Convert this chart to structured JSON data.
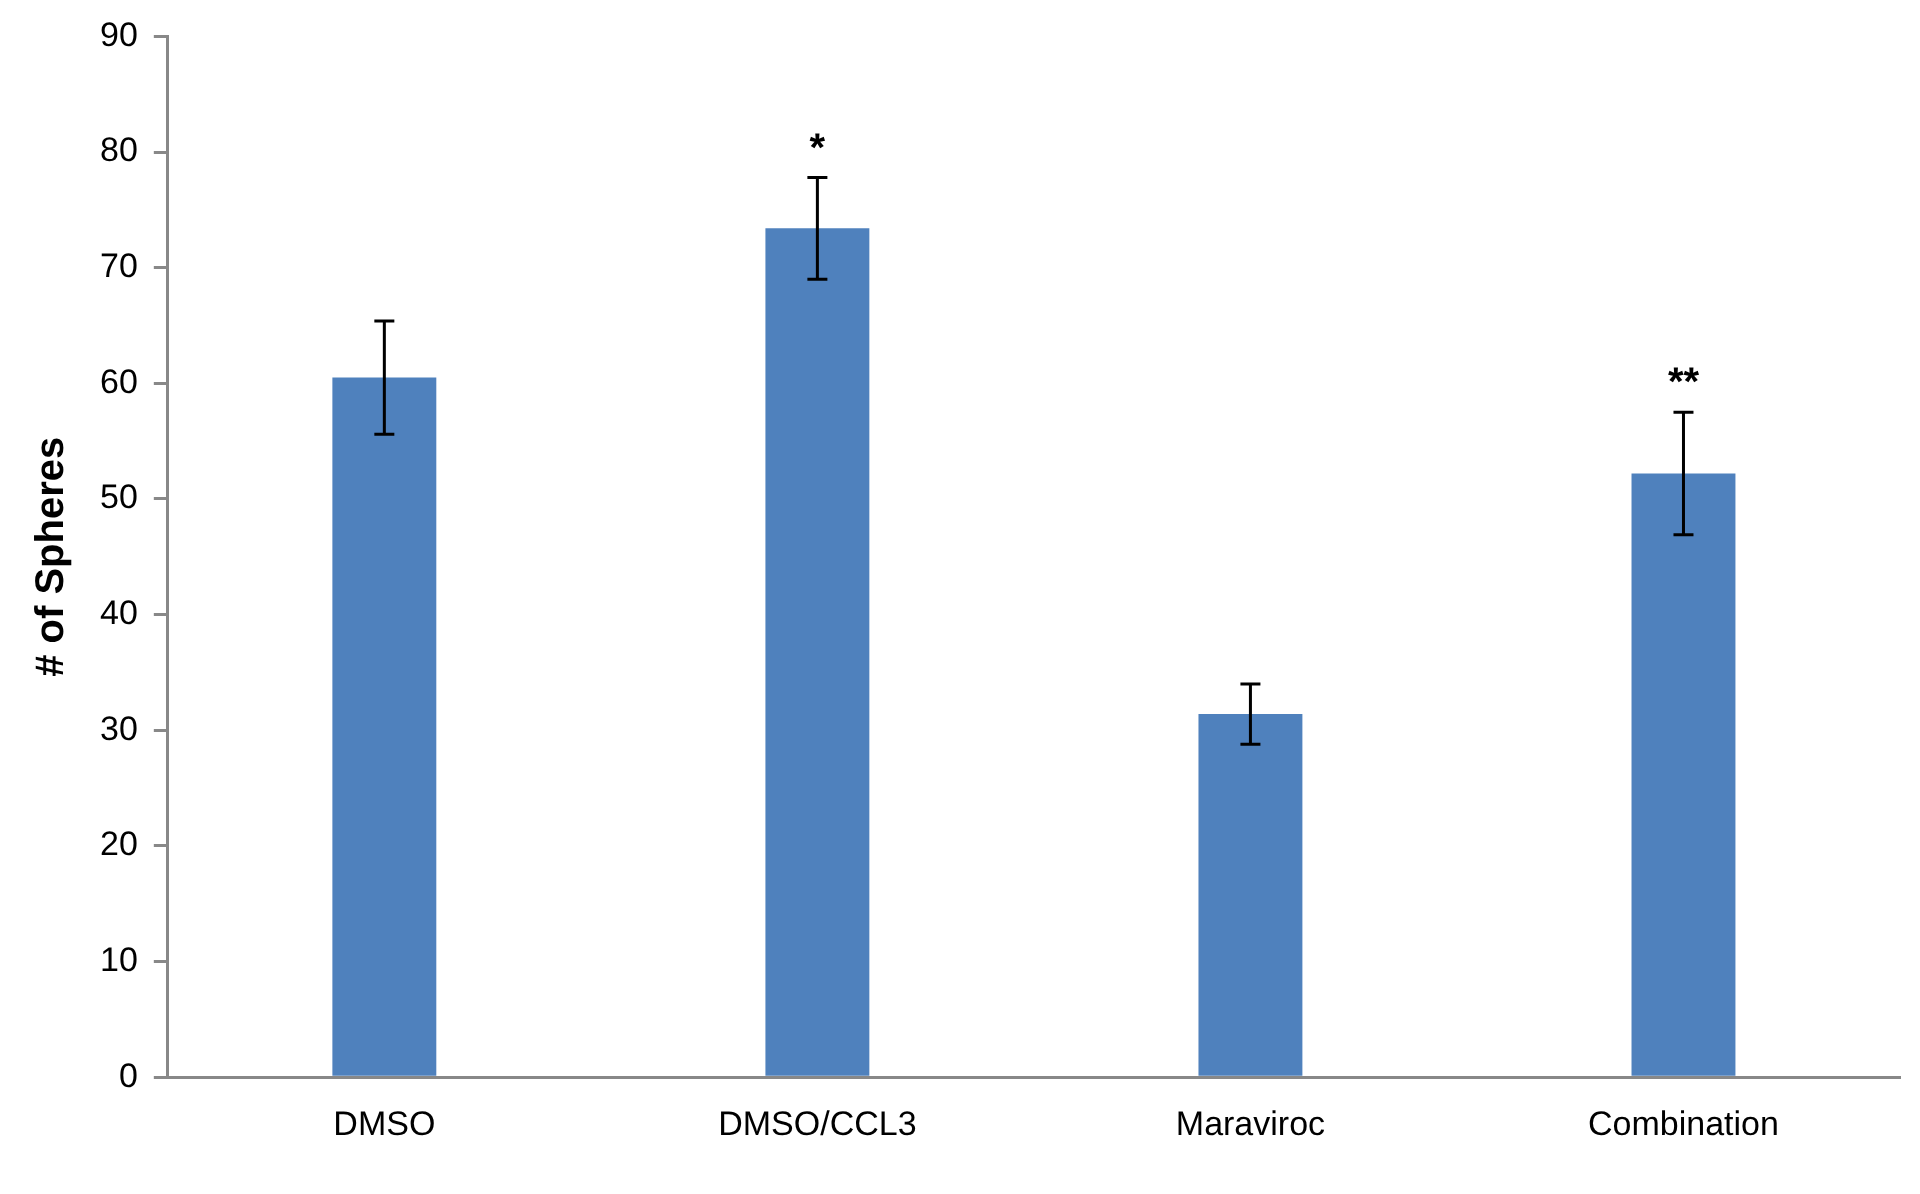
{
  "chart_data": {
    "type": "bar",
    "ylabel": "# of Spheres",
    "categories": [
      "DMSO",
      "DMSO/CCL3",
      "Maraviroc",
      "Combination"
    ],
    "values": [
      60.5,
      73.4,
      31.4,
      52.2
    ],
    "errors": [
      4.9,
      4.4,
      2.6,
      5.3
    ],
    "color": "#4f81bd",
    "ylim": [
      0,
      90
    ],
    "yticks": [
      0,
      10,
      20,
      30,
      40,
      50,
      60,
      70,
      80,
      90
    ],
    "grid": false,
    "legend": false,
    "annotations": [
      {
        "text": "*",
        "x": "DMSO/CCL3",
        "y": 73.4
      },
      {
        "text": "**",
        "x": "Combination",
        "y": 52.2
      }
    ]
  }
}
